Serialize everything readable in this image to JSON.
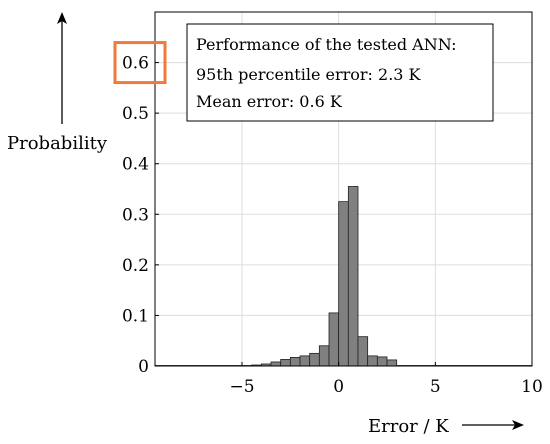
{
  "chart_data": {
    "type": "bar",
    "title": "",
    "xlabel": "Error / K",
    "ylabel": "Probability",
    "xlim": [
      -9.5,
      10
    ],
    "ylim": [
      0,
      0.7
    ],
    "grid": true,
    "bar_color": "#808080",
    "highlight_color": "#F07A3A",
    "highlighted_tick": "0.6",
    "x_ticks": [
      {
        "value": -5,
        "label": "−5"
      },
      {
        "value": 0,
        "label": "0"
      },
      {
        "value": 5,
        "label": "5"
      },
      {
        "value": 10,
        "label": "10"
      }
    ],
    "y_ticks": [
      {
        "value": 0,
        "label": "0"
      },
      {
        "value": 0.1,
        "label": "0.1"
      },
      {
        "value": 0.2,
        "label": "0.2"
      },
      {
        "value": 0.3,
        "label": "0.3"
      },
      {
        "value": 0.4,
        "label": "0.4"
      },
      {
        "value": 0.5,
        "label": "0.5"
      },
      {
        "value": 0.6,
        "label": "0.6"
      }
    ],
    "bins": [
      {
        "x0": -9.5,
        "x1": -4.5,
        "value": 0.001
      },
      {
        "x0": -4.5,
        "x1": -4.0,
        "value": 0.002
      },
      {
        "x0": -4.0,
        "x1": -3.5,
        "value": 0.004
      },
      {
        "x0": -3.5,
        "x1": -3.0,
        "value": 0.008
      },
      {
        "x0": -3.0,
        "x1": -2.5,
        "value": 0.013
      },
      {
        "x0": -2.5,
        "x1": -2.0,
        "value": 0.017
      },
      {
        "x0": -2.0,
        "x1": -1.5,
        "value": 0.02
      },
      {
        "x0": -1.5,
        "x1": -1.0,
        "value": 0.025
      },
      {
        "x0": -1.0,
        "x1": -0.5,
        "value": 0.04
      },
      {
        "x0": -0.5,
        "x1": 0.0,
        "value": 0.105
      },
      {
        "x0": 0.0,
        "x1": 0.5,
        "value": 0.325
      },
      {
        "x0": 0.5,
        "x1": 1.0,
        "value": 0.355
      },
      {
        "x0": 1.0,
        "x1": 1.5,
        "value": 0.058
      },
      {
        "x0": 1.5,
        "x1": 2.0,
        "value": 0.02
      },
      {
        "x0": 2.0,
        "x1": 2.5,
        "value": 0.018
      },
      {
        "x0": 2.5,
        "x1": 3.0,
        "value": 0.012
      },
      {
        "x0": 3.0,
        "x1": 10.0,
        "value": 0.001
      }
    ],
    "annotations": [
      "Performance of the tested ANN:",
      "95th percentile error: 2.3 K",
      "Mean error: 0.6 K"
    ]
  }
}
